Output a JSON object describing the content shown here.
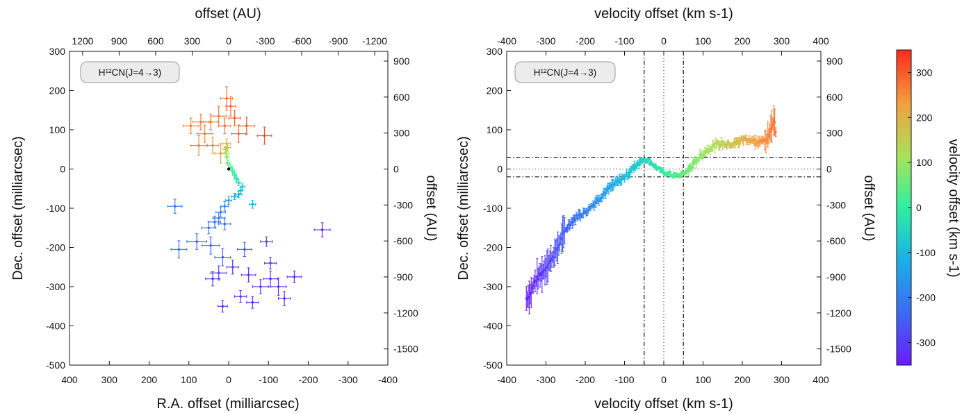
{
  "chart_data": [
    {
      "type": "scatter",
      "panel": "left",
      "xlabel": "R.A. offset (milliarcsec)",
      "ylabel": "Dec. offset (milliarcsec)",
      "x2label": "offset (AU)",
      "y2label": "offset (AU)",
      "label_box": "H¹²CN(J=4→3)",
      "xlim": [
        400,
        -400
      ],
      "ylim": [
        -500,
        300
      ],
      "xticks": [
        "400",
        "300",
        "200",
        "100",
        "0",
        "-100",
        "-200",
        "-300",
        "-400"
      ],
      "yticks": [
        "300",
        "200",
        "100",
        "0",
        "-100",
        "-200",
        "-300",
        "-400",
        "-500"
      ],
      "x2ticks": [
        "1200",
        "900",
        "600",
        "300",
        "0",
        "-300",
        "-600",
        "-900",
        "-1200"
      ],
      "y2ticks": [
        "900",
        "600",
        "300",
        "0",
        "-300",
        "-600",
        "-900",
        "-1200",
        "-1500"
      ],
      "au_per_mas": 3.27,
      "colorscale": "velocity offset (km s-1)",
      "points": [
        {
          "x": 10,
          "y": 110,
          "v": 280,
          "ex": 15,
          "ey": 20
        },
        {
          "x": 25,
          "y": 135,
          "v": 270,
          "ex": 20,
          "ey": 25
        },
        {
          "x": 45,
          "y": 120,
          "v": 275,
          "ex": 18,
          "ey": 20
        },
        {
          "x": 60,
          "y": 90,
          "v": 265,
          "ex": 20,
          "ey": 22
        },
        {
          "x": 5,
          "y": 180,
          "v": 285,
          "ex": 15,
          "ey": 30
        },
        {
          "x": -5,
          "y": 160,
          "v": 280,
          "ex": 12,
          "ey": 25
        },
        {
          "x": -25,
          "y": 90,
          "v": 290,
          "ex": 18,
          "ey": 22
        },
        {
          "x": -45,
          "y": 110,
          "v": 300,
          "ex": 20,
          "ey": 22
        },
        {
          "x": -90,
          "y": 85,
          "v": 310,
          "ex": 18,
          "ey": 22
        },
        {
          "x": 75,
          "y": 60,
          "v": 260,
          "ex": 22,
          "ey": 25
        },
        {
          "x": 40,
          "y": 60,
          "v": 250,
          "ex": 15,
          "ey": 20
        },
        {
          "x": 20,
          "y": 40,
          "v": 240,
          "ex": 15,
          "ey": 25
        },
        {
          "x": 70,
          "y": 120,
          "v": 270,
          "ex": 20,
          "ey": 20
        },
        {
          "x": 95,
          "y": 110,
          "v": 265,
          "ex": 20,
          "ey": 20
        },
        {
          "x": -15,
          "y": 130,
          "v": 300,
          "ex": 15,
          "ey": 20
        },
        {
          "x": 5,
          "y": 65,
          "v": 200,
          "ex": 10,
          "ey": 12
        },
        {
          "x": 3,
          "y": 55,
          "v": 180,
          "ex": 8,
          "ey": 10
        },
        {
          "x": 8,
          "y": 50,
          "v": 150,
          "ex": 6,
          "ey": 8
        },
        {
          "x": 6,
          "y": 40,
          "v": 120,
          "ex": 6,
          "ey": 8
        },
        {
          "x": 4,
          "y": 30,
          "v": 90,
          "ex": 5,
          "ey": 6
        },
        {
          "x": 2,
          "y": 15,
          "v": 60,
          "ex": 5,
          "ey": 6
        },
        {
          "x": -5,
          "y": 5,
          "v": 30,
          "ex": 5,
          "ey": 6
        },
        {
          "x": -10,
          "y": -5,
          "v": 10,
          "ex": 5,
          "ey": 6
        },
        {
          "x": -15,
          "y": -15,
          "v": -10,
          "ex": 5,
          "ey": 6
        },
        {
          "x": -20,
          "y": -25,
          "v": -30,
          "ex": 5,
          "ey": 6
        },
        {
          "x": -25,
          "y": -35,
          "v": -50,
          "ex": 6,
          "ey": 7
        },
        {
          "x": -35,
          "y": -45,
          "v": -70,
          "ex": 6,
          "ey": 7
        },
        {
          "x": -30,
          "y": -55,
          "v": -90,
          "ex": 6,
          "ey": 7
        },
        {
          "x": -25,
          "y": -65,
          "v": -110,
          "ex": 8,
          "ey": 8
        },
        {
          "x": -15,
          "y": -70,
          "v": -130,
          "ex": 8,
          "ey": 8
        },
        {
          "x": -60,
          "y": -90,
          "v": -120,
          "ex": 8,
          "ey": 10
        },
        {
          "x": 0,
          "y": -80,
          "v": -150,
          "ex": 8,
          "ey": 10
        },
        {
          "x": 10,
          "y": -95,
          "v": -180,
          "ex": 10,
          "ey": 12
        },
        {
          "x": 20,
          "y": -110,
          "v": -200,
          "ex": 12,
          "ey": 12
        },
        {
          "x": 25,
          "y": -125,
          "v": -210,
          "ex": 15,
          "ey": 15
        },
        {
          "x": 35,
          "y": -135,
          "v": -220,
          "ex": 15,
          "ey": 15
        },
        {
          "x": 10,
          "y": -140,
          "v": -225,
          "ex": 15,
          "ey": 15
        },
        {
          "x": 50,
          "y": -150,
          "v": -220,
          "ex": 18,
          "ey": 15
        },
        {
          "x": 135,
          "y": -95,
          "v": -220,
          "ex": 18,
          "ey": 18
        },
        {
          "x": 125,
          "y": -205,
          "v": -230,
          "ex": 20,
          "ey": 22
        },
        {
          "x": 80,
          "y": -185,
          "v": -240,
          "ex": 25,
          "ey": 20
        },
        {
          "x": 45,
          "y": -195,
          "v": -250,
          "ex": 22,
          "ey": 22
        },
        {
          "x": 15,
          "y": -225,
          "v": -260,
          "ex": 20,
          "ey": 22
        },
        {
          "x": -40,
          "y": -205,
          "v": -270,
          "ex": 18,
          "ey": 18
        },
        {
          "x": -95,
          "y": -185,
          "v": -280,
          "ex": 15,
          "ey": 12
        },
        {
          "x": 25,
          "y": -265,
          "v": -290,
          "ex": 20,
          "ey": 18
        },
        {
          "x": 40,
          "y": -280,
          "v": -300,
          "ex": 18,
          "ey": 18
        },
        {
          "x": -10,
          "y": -250,
          "v": -300,
          "ex": 15,
          "ey": 18
        },
        {
          "x": -50,
          "y": -270,
          "v": -310,
          "ex": 18,
          "ey": 18
        },
        {
          "x": -80,
          "y": -300,
          "v": -310,
          "ex": 20,
          "ey": 18
        },
        {
          "x": -60,
          "y": -340,
          "v": -320,
          "ex": 15,
          "ey": 15
        },
        {
          "x": -125,
          "y": -300,
          "v": -320,
          "ex": 20,
          "ey": 22
        },
        {
          "x": -140,
          "y": -330,
          "v": -330,
          "ex": 15,
          "ey": 18
        },
        {
          "x": -165,
          "y": -275,
          "v": -320,
          "ex": 18,
          "ey": 15
        },
        {
          "x": -105,
          "y": -280,
          "v": -310,
          "ex": 18,
          "ey": 20
        },
        {
          "x": -105,
          "y": -240,
          "v": -300,
          "ex": 15,
          "ey": 15
        },
        {
          "x": 15,
          "y": -350,
          "v": -330,
          "ex": 12,
          "ey": 15
        },
        {
          "x": -235,
          "y": -155,
          "v": -340,
          "ex": 20,
          "ey": 18
        },
        {
          "x": -30,
          "y": -325,
          "v": -320,
          "ex": 15,
          "ey": 15
        }
      ]
    },
    {
      "type": "scatter",
      "panel": "right",
      "xlabel": "velocity offset (km s-1)",
      "ylabel": "Dec. offset (milliarcsec)",
      "x2label": "velocity offset (km s-1)",
      "y2label": "offset (AU)",
      "label_box": "H¹²CN(J=4→3)",
      "xlim": [
        -400,
        400
      ],
      "ylim": [
        -500,
        300
      ],
      "xticks": [
        "-400",
        "-300",
        "-200",
        "-100",
        "0",
        "100",
        "200",
        "300",
        "400"
      ],
      "yticks": [
        "300",
        "200",
        "100",
        "0",
        "-100",
        "-200",
        "-300",
        "-400",
        "-500"
      ],
      "y2ticks": [
        "900",
        "600",
        "300",
        "0",
        "-300",
        "-600",
        "-900",
        "-1200",
        "-1500"
      ],
      "vlines_dashdot": [
        -50,
        50
      ],
      "vline_dotted": 0,
      "hlines_dashdot": [
        30,
        -20
      ],
      "hline_dotted": 0,
      "curve": [
        [
          -350,
          -330
        ],
        [
          -340,
          -320
        ],
        [
          -330,
          -290
        ],
        [
          -320,
          -275
        ],
        [
          -310,
          -265
        ],
        [
          -300,
          -250
        ],
        [
          -290,
          -235
        ],
        [
          -280,
          -220
        ],
        [
          -270,
          -200
        ],
        [
          -260,
          -175
        ],
        [
          -250,
          -155
        ],
        [
          -240,
          -140
        ],
        [
          -230,
          -130
        ],
        [
          -220,
          -120
        ],
        [
          -210,
          -115
        ],
        [
          -200,
          -110
        ],
        [
          -190,
          -100
        ],
        [
          -180,
          -90
        ],
        [
          -170,
          -80
        ],
        [
          -160,
          -70
        ],
        [
          -150,
          -60
        ],
        [
          -140,
          -50
        ],
        [
          -130,
          -42
        ],
        [
          -120,
          -35
        ],
        [
          -110,
          -28
        ],
        [
          -100,
          -20
        ],
        [
          -90,
          -10
        ],
        [
          -80,
          0
        ],
        [
          -70,
          10
        ],
        [
          -60,
          20
        ],
        [
          -50,
          25
        ],
        [
          -40,
          22
        ],
        [
          -30,
          15
        ],
        [
          -20,
          5
        ],
        [
          -10,
          -3
        ],
        [
          0,
          -8
        ],
        [
          10,
          -12
        ],
        [
          20,
          -15
        ],
        [
          30,
          -17
        ],
        [
          40,
          -16
        ],
        [
          50,
          -12
        ],
        [
          60,
          -5
        ],
        [
          70,
          5
        ],
        [
          80,
          18
        ],
        [
          90,
          30
        ],
        [
          100,
          40
        ],
        [
          110,
          48
        ],
        [
          120,
          55
        ],
        [
          130,
          60
        ],
        [
          140,
          63
        ],
        [
          150,
          65
        ],
        [
          160,
          63
        ],
        [
          170,
          62
        ],
        [
          180,
          65
        ],
        [
          190,
          70
        ],
        [
          200,
          75
        ],
        [
          210,
          76
        ],
        [
          220,
          74
        ],
        [
          230,
          70
        ],
        [
          240,
          68
        ],
        [
          250,
          70
        ],
        [
          260,
          75
        ],
        [
          270,
          90
        ],
        [
          275,
          110
        ],
        [
          280,
          130
        ],
        [
          285,
          100
        ]
      ]
    }
  ],
  "colorbar": {
    "label": "velocity offset (km s-1)",
    "ticks": [
      "300",
      "200",
      "100",
      "0",
      "-100",
      "-200",
      "-300"
    ],
    "range": [
      -350,
      350
    ],
    "colors": [
      "#6a1bff",
      "#3b6cf2",
      "#19b3e6",
      "#2ff0a0",
      "#a8e35a",
      "#f2a040",
      "#ff2a1a"
    ]
  }
}
